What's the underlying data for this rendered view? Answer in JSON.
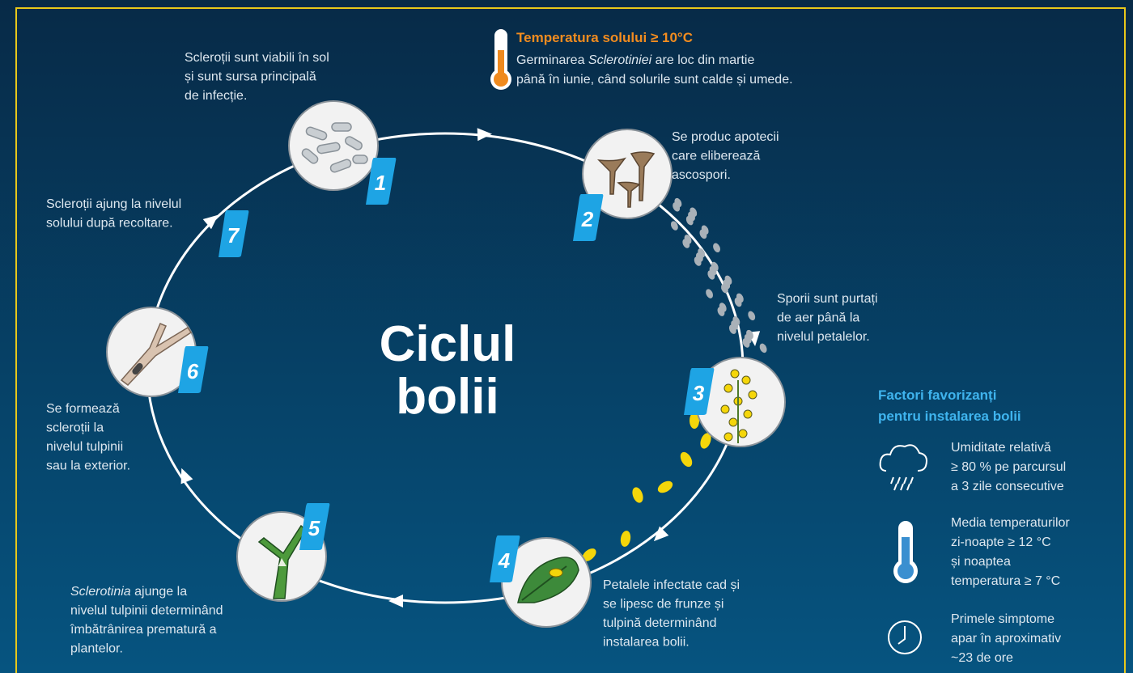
{
  "title": {
    "lines": [
      "Ciclul",
      "bolii"
    ]
  },
  "soil_temperature": {
    "title": "Temperatura solului ≥ 10°C",
    "line1_before": "Germinarea ",
    "line1_italic": "Sclerotiniei",
    "line1_after": " are loc din martie",
    "line2": "până în iunie, când solurile sunt calde și umede."
  },
  "steps": [
    {
      "number": 1,
      "lines": [
        "Scleroții sunt viabili în sol",
        "și sunt sursa principală",
        "de infecție."
      ]
    },
    {
      "number": 2,
      "lines": [
        "Se produc apotecii",
        "care eliberează",
        "ascospori."
      ]
    },
    {
      "number": 3,
      "lines": [
        "Sporii sunt purtați",
        "de aer până la",
        "nivelul petalelor."
      ]
    },
    {
      "number": 4,
      "lines": [
        "Petalele infectate cad și",
        "se lipesc de frunze și",
        "tulpină determinând",
        "instalarea bolii."
      ]
    },
    {
      "number": 5,
      "italic_lead": "Sclerotinia",
      "lines": [
        " ajunge la",
        "nivelul tulpinii determinând",
        "îmbătrânirea prematură a",
        "plantelor."
      ]
    },
    {
      "number": 6,
      "lines": [
        "Se formează",
        "scleroții la",
        "nivelul tulpinii",
        "sau la exterior."
      ]
    },
    {
      "number": 7,
      "lines": [
        "Scleroții ajung la nivelul",
        "solului după recoltare."
      ]
    }
  ],
  "factors": {
    "title_lines": [
      "Factori favorizanți",
      "pentru instalarea bolii"
    ],
    "items": [
      {
        "lines": [
          "Umiditate relativă",
          "≥ 80 % pe parcursul",
          "a 3 zile consecutive"
        ]
      },
      {
        "lines": [
          "Media temperaturilor",
          "zi-noapte ≥ 12 °C",
          "și noaptea",
          "temperatura ≥ 7 °C"
        ]
      },
      {
        "lines": [
          "Primele simptome",
          "apar în aproximativ",
          "~23 de ore"
        ]
      }
    ]
  }
}
